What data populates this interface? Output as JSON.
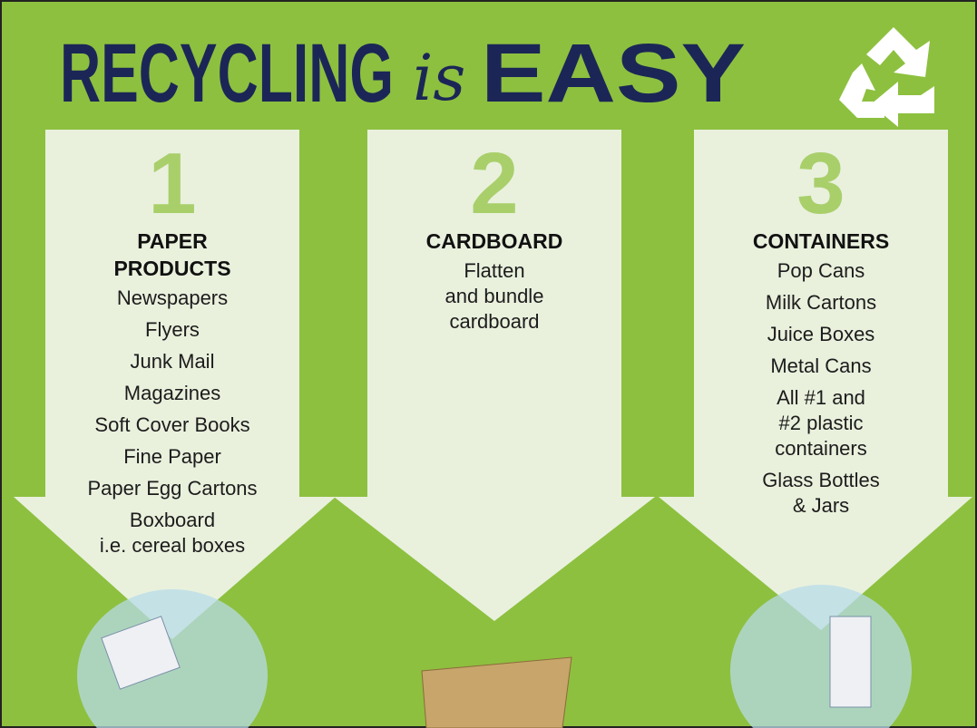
{
  "title": {
    "start": "RECYCLING",
    "middle": "is",
    "end": "EASY"
  },
  "columns": [
    {
      "number": "1",
      "heading": [
        "PAPER",
        "PRODUCTS"
      ],
      "items": [
        [
          "Newspapers"
        ],
        [
          "Flyers"
        ],
        [
          "Junk Mail"
        ],
        [
          "Magazines"
        ],
        [
          "Soft Cover Books"
        ],
        [
          "Fine Paper"
        ],
        [
          "Paper Egg Cartons"
        ],
        [
          "Boxboard",
          "i.e. cereal boxes"
        ]
      ]
    },
    {
      "number": "2",
      "heading": [
        "CARDBOARD"
      ],
      "items": [
        [
          "Flatten",
          "and bundle",
          "cardboard"
        ]
      ]
    },
    {
      "number": "3",
      "heading": [
        "CONTAINERS"
      ],
      "items": [
        [
          "Pop Cans"
        ],
        [
          "Milk Cartons"
        ],
        [
          "Juice Boxes"
        ],
        [
          "Metal Cans"
        ],
        [
          "All #1 and",
          "#2 plastic",
          "containers"
        ],
        [
          "Glass Bottles",
          "& Jars"
        ]
      ]
    }
  ]
}
